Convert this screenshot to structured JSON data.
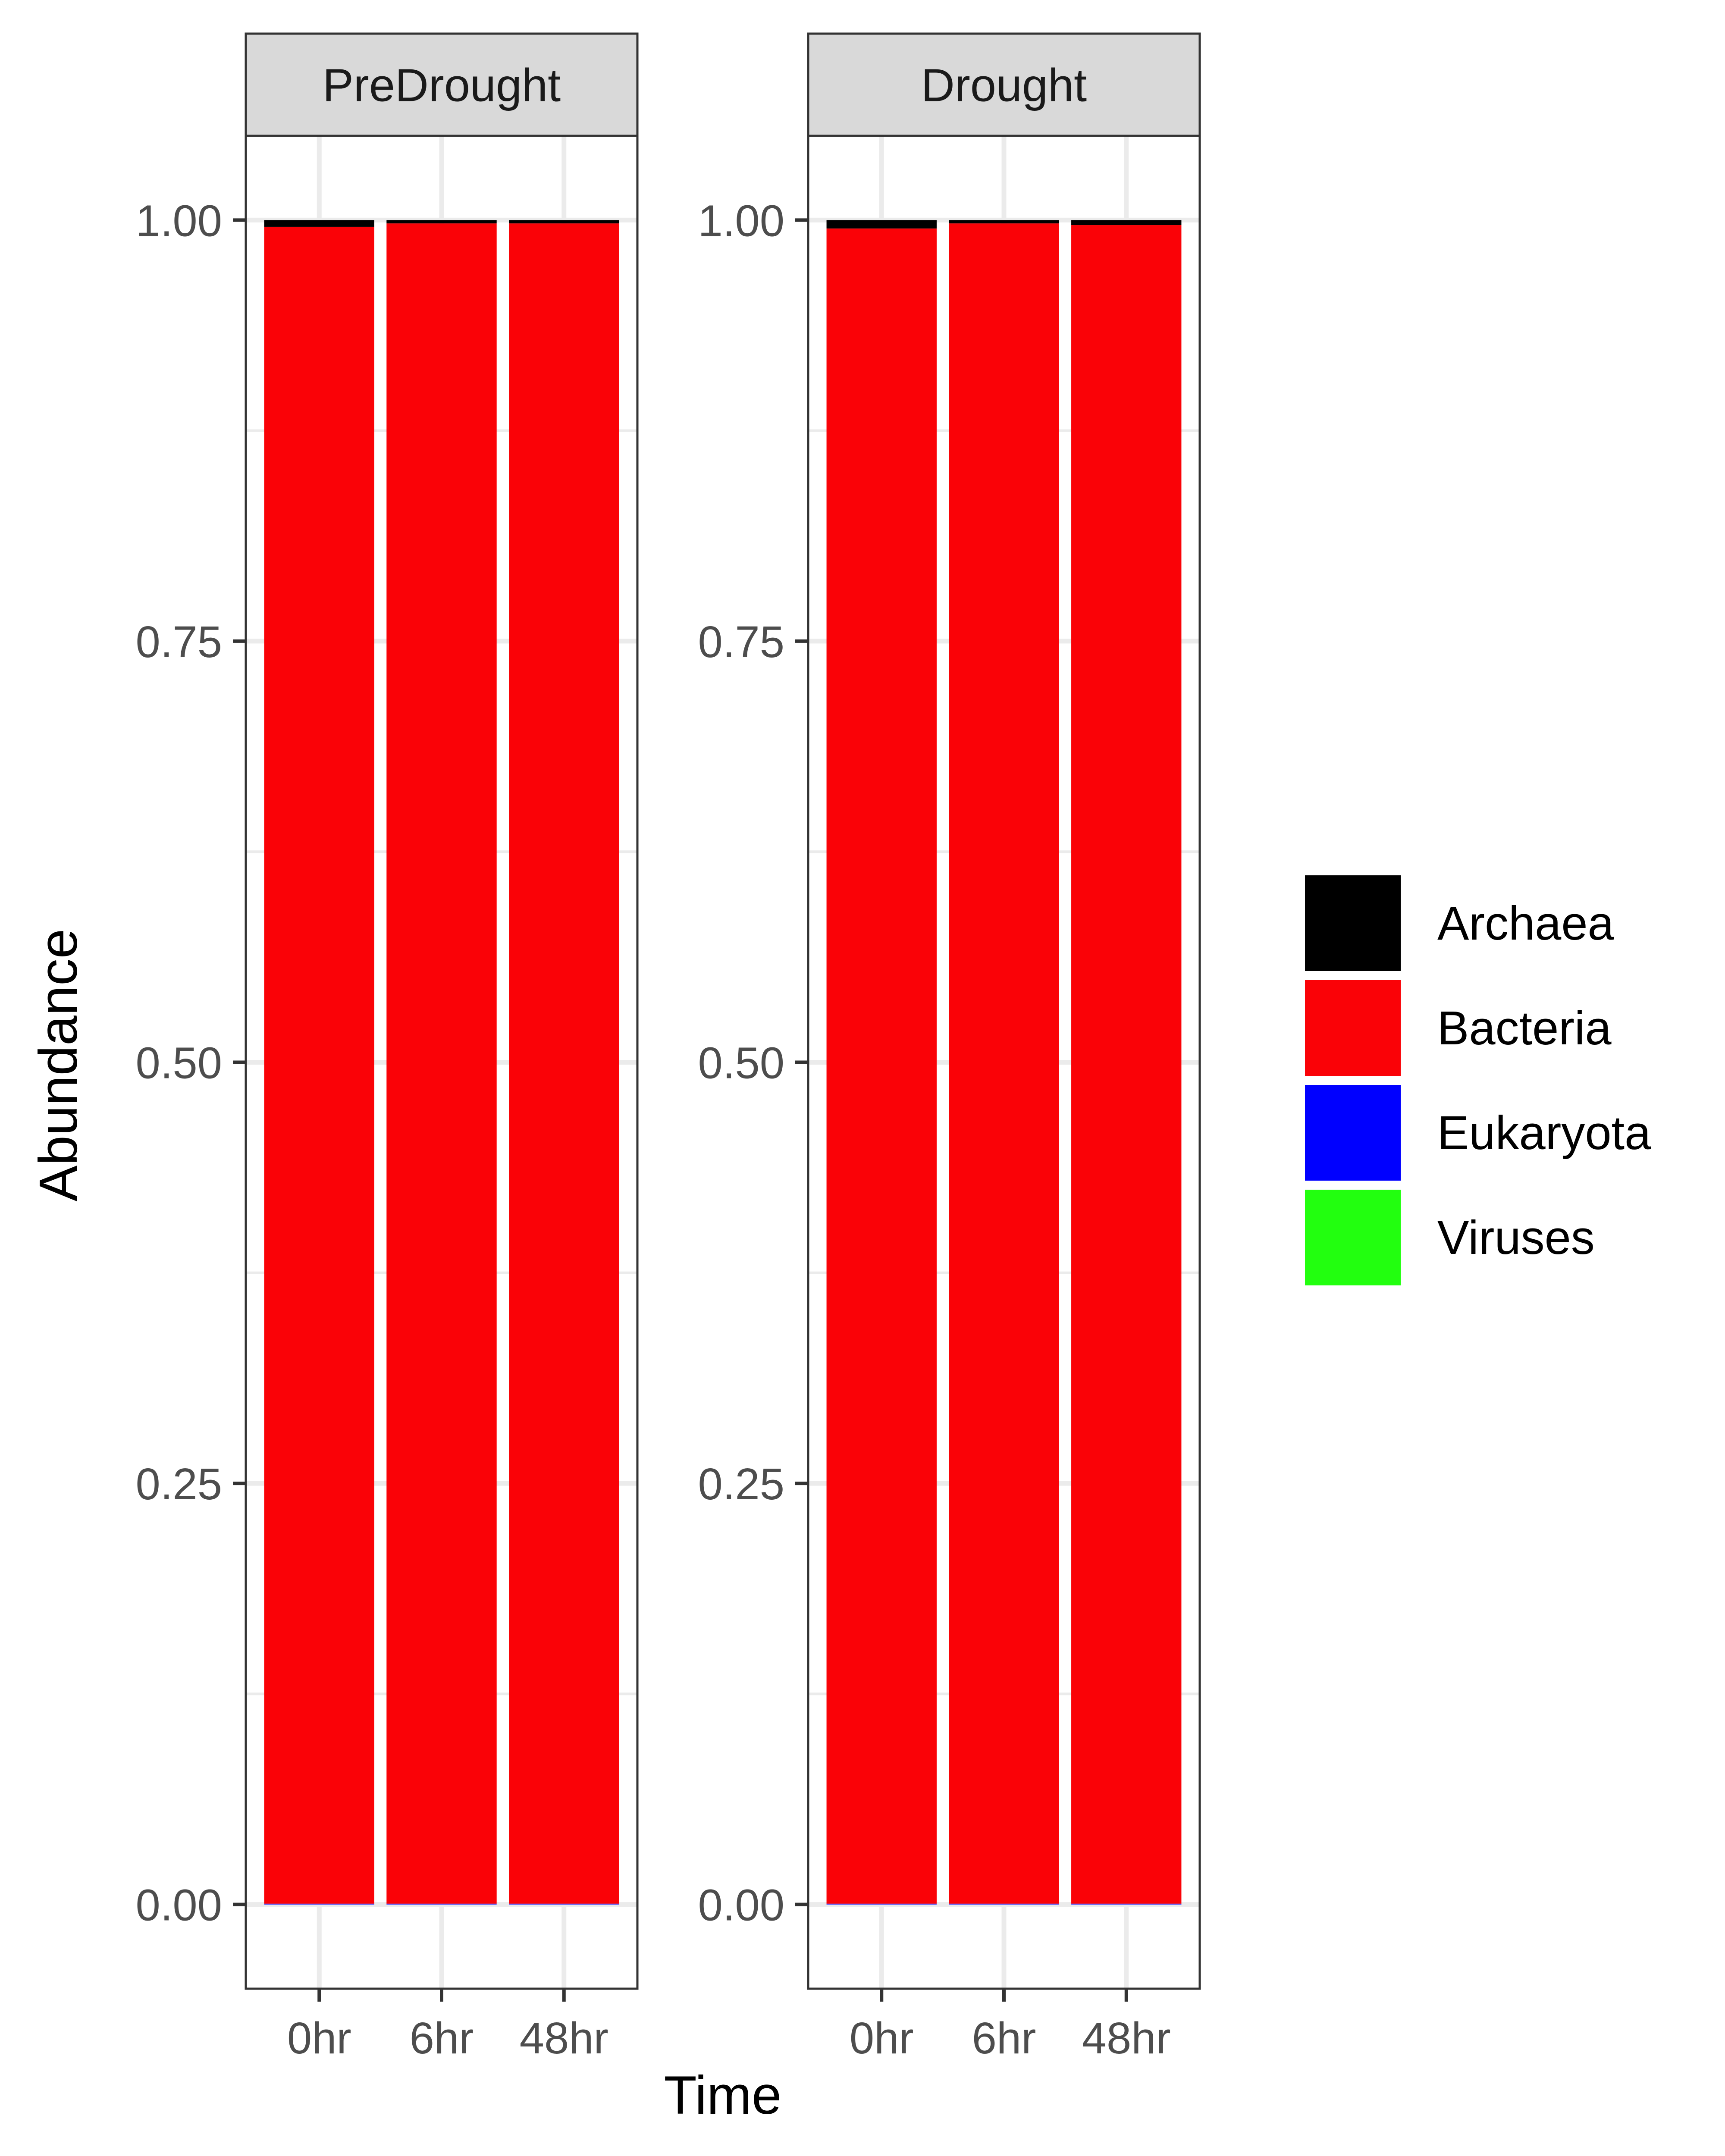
{
  "chart_data": {
    "type": "bar",
    "stacked": true,
    "xlabel": "Time",
    "ylabel": "Abundance",
    "ylim": [
      -0.05,
      1.05
    ],
    "yticks": [
      "0.00",
      "0.25",
      "0.50",
      "0.75",
      "1.00"
    ],
    "ytick_values": [
      0,
      0.25,
      0.5,
      0.75,
      1.0
    ],
    "categories": [
      "0hr",
      "6hr",
      "48hr"
    ],
    "grid": true,
    "legend_position": "right",
    "facets": [
      {
        "label": "PreDrought",
        "series": [
          {
            "name": "Viruses",
            "values": [
              0.0,
              0.0,
              0.0
            ]
          },
          {
            "name": "Eukaryota",
            "values": [
              0.0005,
              0.0005,
              0.0005
            ]
          },
          {
            "name": "Bacteria",
            "values": [
              0.9955,
              0.9975,
              0.9975
            ]
          },
          {
            "name": "Archaea",
            "values": [
              0.004,
              0.002,
              0.002
            ]
          }
        ]
      },
      {
        "label": "Drought",
        "series": [
          {
            "name": "Viruses",
            "values": [
              0.0,
              0.0,
              0.0
            ]
          },
          {
            "name": "Eukaryota",
            "values": [
              0.0005,
              0.0005,
              0.0005
            ]
          },
          {
            "name": "Bacteria",
            "values": [
              0.9945,
              0.9975,
              0.9965
            ]
          },
          {
            "name": "Archaea",
            "values": [
              0.005,
              0.002,
              0.003
            ]
          }
        ]
      }
    ],
    "legend": [
      {
        "name": "Archaea",
        "color": "#000000"
      },
      {
        "name": "Bacteria",
        "color": "#FA0207"
      },
      {
        "name": "Eukaryota",
        "color": "#0000FF"
      },
      {
        "name": "Viruses",
        "color": "#22FF0F"
      }
    ]
  }
}
